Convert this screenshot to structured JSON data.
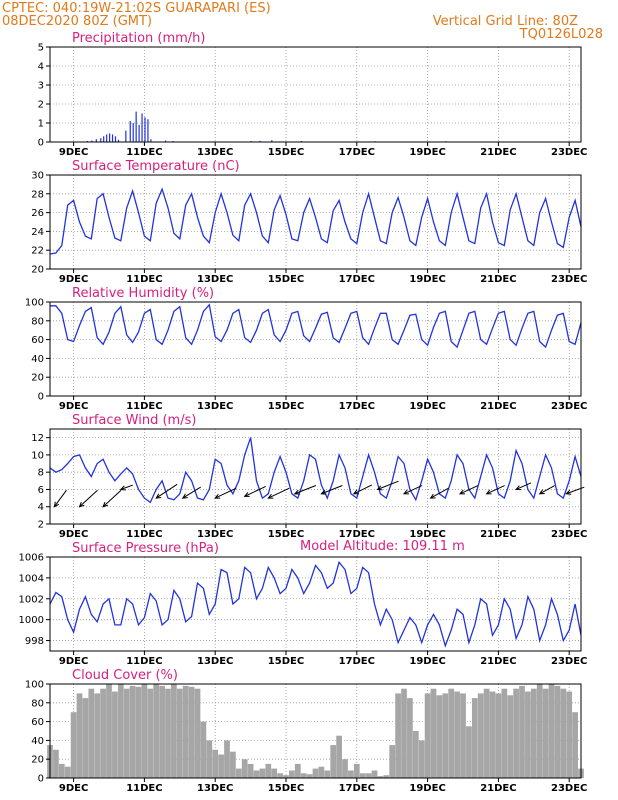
{
  "header": {
    "line1_left": "CPTEC:   040:19W-21:02S   GUARAPARI (ES)",
    "line2_left": "08DEC2020 80Z (GMT)",
    "line1_right": "Vertical Grid Line: 80Z",
    "line2_right": "TQ0126L028",
    "model_altitude": "Model Altitude: 109.11 m"
  },
  "colors": {
    "header": "#e07a1a",
    "title": "#d6207f",
    "series": "#2233dd",
    "cloud": "#a6a6a6",
    "grid": "#9a9a9a"
  },
  "x_axis": {
    "start_hours": 0,
    "end_hours": 360,
    "ticks": [
      {
        "label": "9DEC",
        "h": 16
      },
      {
        "label": "11DEC",
        "h": 64
      },
      {
        "label": "13DEC",
        "h": 112
      },
      {
        "label": "15DEC",
        "h": 160
      },
      {
        "label": "17DEC",
        "h": 208
      },
      {
        "label": "19DEC",
        "h": 256
      },
      {
        "label": "21DEC",
        "h": 304
      },
      {
        "label": "23DEC",
        "h": 352
      }
    ]
  },
  "chart_data": [
    {
      "id": "precip",
      "type": "bar",
      "title": "Precipitation (mm/h)",
      "ylim": [
        0,
        5
      ],
      "yticks": [
        0,
        1,
        2,
        3,
        4,
        5
      ],
      "x": [
        25,
        28,
        31,
        34,
        36,
        38,
        40,
        42,
        44,
        46,
        51,
        54,
        56,
        58,
        60,
        62,
        64,
        66,
        68,
        78,
        83,
        136,
        142,
        150,
        170,
        220,
        268
      ],
      "values": [
        0.05,
        0.08,
        0.15,
        0.2,
        0.3,
        0.4,
        0.45,
        0.4,
        0.3,
        0.12,
        0.6,
        1.1,
        1.0,
        1.6,
        0.9,
        1.5,
        1.3,
        1.2,
        0.15,
        0.08,
        0.05,
        0.05,
        0.06,
        0.1,
        0.05,
        0.04,
        0.04
      ]
    },
    {
      "id": "temp",
      "type": "line",
      "title": "Surface Temperature (nC)",
      "ylim": [
        20,
        30
      ],
      "yticks": [
        20,
        22,
        24,
        26,
        28,
        30
      ],
      "x": [
        0,
        4,
        8,
        12,
        16,
        20,
        24,
        28,
        32,
        36,
        40,
        44,
        48,
        52,
        56,
        60,
        64,
        68,
        72,
        76,
        80,
        84,
        88,
        92,
        96,
        100,
        104,
        108,
        112,
        116,
        120,
        124,
        128,
        132,
        136,
        140,
        144,
        148,
        152,
        156,
        160,
        164,
        168,
        172,
        176,
        180,
        184,
        188,
        192,
        196,
        200,
        204,
        208,
        212,
        216,
        220,
        224,
        228,
        232,
        236,
        240,
        244,
        248,
        252,
        256,
        260,
        264,
        268,
        272,
        276,
        280,
        284,
        288,
        292,
        296,
        300,
        304,
        308,
        312,
        316,
        320,
        324,
        328,
        332,
        336,
        340,
        344,
        348,
        352,
        356,
        360
      ],
      "values": [
        21.6,
        21.7,
        22.5,
        26.8,
        27.3,
        25.0,
        23.5,
        23.2,
        27.5,
        28.0,
        25.5,
        23.3,
        23.0,
        26.5,
        28.3,
        26.0,
        23.5,
        23.0,
        27.0,
        28.5,
        26.5,
        23.8,
        23.2,
        26.8,
        28.0,
        25.5,
        23.5,
        22.8,
        26.0,
        28.0,
        26.0,
        23.6,
        23.0,
        26.8,
        28.0,
        26.0,
        23.5,
        22.8,
        26.3,
        27.8,
        25.8,
        23.2,
        23.0,
        26.0,
        27.5,
        25.5,
        23.2,
        22.8,
        26.2,
        27.3,
        25.0,
        23.2,
        22.7,
        26.0,
        28.0,
        25.5,
        23.0,
        22.7,
        26.0,
        27.6,
        25.5,
        23.0,
        22.5,
        25.5,
        27.5,
        25.0,
        23.0,
        22.5,
        26.0,
        28.0,
        25.5,
        23.0,
        22.7,
        26.5,
        28.0,
        25.0,
        22.8,
        22.5,
        26.3,
        28.0,
        25.5,
        23.0,
        22.5,
        26.0,
        27.5,
        25.0,
        22.7,
        22.3,
        25.5,
        27.3,
        24.5
      ]
    },
    {
      "id": "rh",
      "type": "line",
      "title": "Relative Humidity (%)",
      "ylim": [
        0,
        100
      ],
      "yticks": [
        0,
        20,
        40,
        60,
        80,
        100
      ],
      "x": [
        0,
        4,
        8,
        12,
        16,
        20,
        24,
        28,
        32,
        36,
        40,
        44,
        48,
        52,
        56,
        60,
        64,
        68,
        72,
        76,
        80,
        84,
        88,
        92,
        96,
        100,
        104,
        108,
        112,
        116,
        120,
        124,
        128,
        132,
        136,
        140,
        144,
        148,
        152,
        156,
        160,
        164,
        168,
        172,
        176,
        180,
        184,
        188,
        192,
        196,
        200,
        204,
        208,
        212,
        216,
        220,
        224,
        228,
        232,
        236,
        240,
        244,
        248,
        252,
        256,
        260,
        264,
        268,
        272,
        276,
        280,
        284,
        288,
        292,
        296,
        300,
        304,
        308,
        312,
        316,
        320,
        324,
        328,
        332,
        336,
        340,
        344,
        348,
        352,
        356,
        360
      ],
      "values": [
        96,
        96,
        88,
        60,
        58,
        75,
        90,
        94,
        62,
        55,
        68,
        88,
        95,
        65,
        57,
        68,
        88,
        92,
        60,
        55,
        70,
        90,
        95,
        62,
        55,
        70,
        90,
        97,
        63,
        58,
        70,
        88,
        92,
        62,
        57,
        70,
        88,
        92,
        65,
        58,
        70,
        88,
        90,
        64,
        58,
        72,
        87,
        89,
        62,
        57,
        72,
        88,
        90,
        62,
        55,
        72,
        88,
        88,
        60,
        55,
        70,
        86,
        87,
        60,
        54,
        73,
        88,
        90,
        58,
        52,
        70,
        88,
        90,
        60,
        55,
        72,
        88,
        90,
        60,
        54,
        72,
        88,
        90,
        58,
        52,
        70,
        86,
        88,
        58,
        55,
        78
      ]
    },
    {
      "id": "wind",
      "type": "line",
      "title": "Surface Wind (m/s)",
      "ylim": [
        2,
        13
      ],
      "yticks": [
        2,
        4,
        6,
        8,
        10,
        12
      ],
      "x": [
        0,
        4,
        8,
        12,
        16,
        20,
        24,
        28,
        32,
        36,
        40,
        44,
        48,
        52,
        56,
        60,
        64,
        68,
        72,
        76,
        80,
        84,
        88,
        92,
        96,
        100,
        104,
        108,
        112,
        116,
        120,
        124,
        128,
        132,
        136,
        140,
        144,
        148,
        152,
        156,
        160,
        164,
        168,
        172,
        176,
        180,
        184,
        188,
        192,
        196,
        200,
        204,
        208,
        212,
        216,
        220,
        224,
        228,
        232,
        236,
        240,
        244,
        248,
        252,
        256,
        260,
        264,
        268,
        272,
        276,
        280,
        284,
        288,
        292,
        296,
        300,
        304,
        308,
        312,
        316,
        320,
        324,
        328,
        332,
        336,
        340,
        344,
        348,
        352,
        356,
        360
      ],
      "values": [
        8.5,
        8.0,
        8.3,
        9.0,
        9.8,
        10.0,
        8.5,
        7.5,
        9.0,
        9.5,
        8.0,
        7.0,
        7.8,
        8.5,
        7.8,
        6.0,
        5.0,
        4.5,
        6.0,
        7.0,
        5.0,
        4.8,
        5.5,
        8.0,
        7.0,
        5.0,
        4.8,
        6.0,
        9.5,
        9.0,
        6.5,
        5.5,
        7.0,
        10.0,
        12.0,
        7.0,
        5.0,
        5.5,
        8.0,
        9.8,
        8.0,
        5.5,
        5.0,
        7.0,
        10.0,
        9.5,
        6.5,
        5.0,
        7.0,
        10.0,
        8.5,
        5.5,
        5.0,
        7.5,
        10.0,
        8.0,
        5.5,
        5.0,
        7.0,
        9.8,
        9.0,
        6.0,
        4.8,
        7.0,
        9.5,
        8.0,
        5.5,
        5.0,
        7.0,
        10.0,
        9.0,
        6.0,
        5.0,
        7.5,
        10.0,
        8.5,
        5.5,
        5.0,
        7.0,
        10.5,
        9.0,
        6.0,
        5.0,
        7.5,
        10.0,
        8.5,
        5.5,
        5.0,
        7.0,
        9.8,
        7.5
      ],
      "barbs": {
        "x": [
          3,
          20,
          36,
          48,
          72,
          90,
          112,
          132,
          148,
          166,
          184,
          206,
          222,
          240,
          258,
          278,
          296,
          316,
          332,
          350
        ],
        "y": [
          4.0,
          4.0,
          4.0,
          6.0,
          5.0,
          5.0,
          5.0,
          5.2,
          5.0,
          5.5,
          5.5,
          5.5,
          6.0,
          5.5,
          5.0,
          5.5,
          5.5,
          6.0,
          5.5,
          5.5
        ],
        "dx": [
          4,
          6,
          6,
          4,
          7,
          6,
          7,
          7,
          7,
          7,
          7,
          6,
          7,
          6,
          6,
          6,
          6,
          5,
          5,
          6
        ],
        "dy": [
          3,
          3,
          3,
          0.8,
          2.5,
          2.0,
          1.8,
          1.8,
          1.8,
          1.5,
          1.5,
          1.6,
          1.5,
          1.5,
          1.8,
          1.5,
          1.5,
          1.2,
          1.5,
          1.2
        ]
      }
    },
    {
      "id": "pressure",
      "type": "line",
      "title": "Surface Pressure (hPa)",
      "ylim": [
        997,
        1006
      ],
      "yticks": [
        998,
        1000,
        1002,
        1004,
        1006
      ],
      "x": [
        0,
        4,
        8,
        12,
        16,
        20,
        24,
        28,
        32,
        36,
        40,
        44,
        48,
        52,
        56,
        60,
        64,
        68,
        72,
        76,
        80,
        84,
        88,
        92,
        96,
        100,
        104,
        108,
        112,
        116,
        120,
        124,
        128,
        132,
        136,
        140,
        144,
        148,
        152,
        156,
        160,
        164,
        168,
        172,
        176,
        180,
        184,
        188,
        192,
        196,
        200,
        204,
        208,
        212,
        216,
        220,
        224,
        228,
        232,
        236,
        240,
        244,
        248,
        252,
        256,
        260,
        264,
        268,
        272,
        276,
        280,
        284,
        288,
        292,
        296,
        300,
        304,
        308,
        312,
        316,
        320,
        324,
        328,
        332,
        336,
        340,
        344,
        348,
        352,
        356,
        360
      ],
      "values": [
        1001.5,
        1002.6,
        1002.2,
        1000.0,
        998.8,
        1001.0,
        1002.2,
        1000.5,
        999.8,
        1001.5,
        1002.0,
        999.5,
        999.5,
        1002.0,
        1001.5,
        999.5,
        1000.2,
        1002.5,
        1001.8,
        999.5,
        1000.0,
        1002.8,
        1002.0,
        999.8,
        1000.3,
        1003.5,
        1003.0,
        1000.5,
        1001.5,
        1004.8,
        1004.5,
        1001.5,
        1002.0,
        1005.0,
        1004.5,
        1002.0,
        1003.0,
        1005.0,
        1004.0,
        1002.5,
        1003.0,
        1004.8,
        1004.0,
        1002.5,
        1003.5,
        1005.2,
        1004.5,
        1003.0,
        1003.5,
        1005.5,
        1004.8,
        1002.5,
        1003.0,
        1005.0,
        1004.5,
        1001.5,
        999.5,
        1001.0,
        1000.0,
        997.8,
        999.0,
        1000.2,
        999.5,
        997.8,
        999.5,
        1000.5,
        999.5,
        997.5,
        999.0,
        1001.0,
        1000.5,
        997.8,
        999.5,
        1002.0,
        1001.5,
        998.5,
        999.5,
        1002.0,
        1001.0,
        998.2,
        999.5,
        1002.2,
        1001.0,
        998.0,
        999.5,
        1002.0,
        1000.5,
        998.0,
        999.0,
        1001.5,
        998.5
      ]
    },
    {
      "id": "cloud",
      "type": "bar",
      "title": "Cloud Cover (%)",
      "ylim": [
        0,
        100
      ],
      "yticks": [
        0,
        20,
        40,
        60,
        80,
        100
      ],
      "x": [
        0,
        4,
        8,
        12,
        16,
        20,
        24,
        28,
        32,
        36,
        40,
        44,
        48,
        52,
        56,
        60,
        64,
        68,
        72,
        76,
        80,
        84,
        88,
        92,
        96,
        100,
        104,
        108,
        112,
        116,
        120,
        124,
        128,
        132,
        136,
        140,
        144,
        148,
        152,
        156,
        160,
        164,
        168,
        172,
        176,
        180,
        184,
        188,
        192,
        196,
        200,
        204,
        208,
        212,
        216,
        220,
        224,
        228,
        232,
        236,
        240,
        244,
        248,
        252,
        256,
        260,
        264,
        268,
        272,
        276,
        280,
        284,
        288,
        292,
        296,
        300,
        304,
        308,
        312,
        316,
        320,
        324,
        328,
        332,
        336,
        340,
        344,
        348,
        352,
        356,
        360
      ],
      "values": [
        35,
        30,
        15,
        12,
        70,
        90,
        85,
        95,
        90,
        95,
        100,
        92,
        100,
        95,
        98,
        97,
        100,
        95,
        100,
        98,
        95,
        100,
        95,
        98,
        97,
        95,
        60,
        40,
        30,
        25,
        40,
        28,
        10,
        20,
        15,
        8,
        10,
        15,
        10,
        5,
        3,
        8,
        15,
        5,
        4,
        10,
        12,
        8,
        35,
        45,
        20,
        8,
        15,
        5,
        5,
        8,
        2,
        3,
        35,
        90,
        95,
        85,
        50,
        40,
        90,
        95,
        88,
        90,
        95,
        92,
        90,
        55,
        85,
        90,
        95,
        92,
        90,
        95,
        88,
        95,
        98,
        92,
        95,
        100,
        95,
        100,
        98,
        95,
        92,
        70,
        10
      ]
    }
  ]
}
